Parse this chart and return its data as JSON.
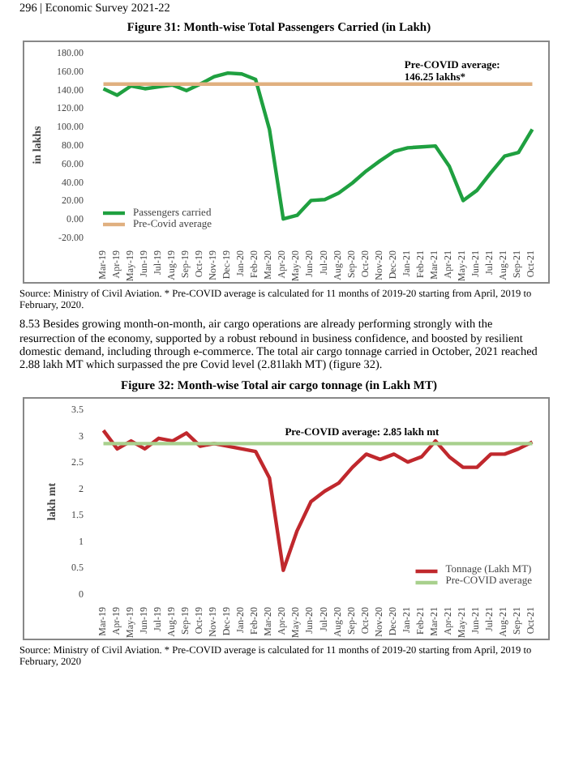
{
  "chart_data": [
    {
      "type": "line",
      "title": "Figure 31: Month-wise Total Passengers Carried (in Lakh)",
      "ylabel": "in lakhs",
      "categories": [
        "Mar-19",
        "Apr-19",
        "May-19",
        "Jun-19",
        "Jul-19",
        "Aug-19",
        "Sep-19",
        "Oct-19",
        "Nov-19",
        "Dec-19",
        "Jan-20",
        "Feb-20",
        "Mar-20",
        "Apr-20",
        "May-20",
        "Jun-20",
        "Jul-20",
        "Aug-20",
        "Sep-20",
        "Oct-20",
        "Nov-20",
        "Dec-20",
        "Jan-21",
        "Feb-21",
        "Mar-21",
        "Apr-21",
        "May-21",
        "Jun-21",
        "Jul-21",
        "Aug-21",
        "Sep-21",
        "Oct-21"
      ],
      "series": [
        {
          "name": "Passengers carried",
          "color": "#1fa040",
          "values": [
            141,
            134,
            144,
            141,
            143,
            145,
            139,
            146,
            154,
            158,
            157,
            151,
            97,
            0,
            4,
            20,
            21,
            28,
            39,
            52,
            63,
            73,
            77,
            78,
            79,
            57,
            20,
            31,
            50,
            68,
            72,
            97
          ]
        },
        {
          "name": "Pre-Covid average",
          "color": "#e0b080",
          "values": [
            146,
            146,
            146,
            146,
            146,
            146,
            146,
            146,
            146,
            146,
            146,
            146,
            146,
            146,
            146,
            146,
            146,
            146,
            146,
            146,
            146,
            146,
            146,
            146,
            146,
            146,
            146,
            146,
            146,
            146,
            146,
            146
          ]
        }
      ],
      "ylim": [
        -20,
        180
      ],
      "yticks": [
        {
          "value": -20,
          "label": "-20.00"
        },
        {
          "value": 0,
          "label": "0.00"
        },
        {
          "value": 20,
          "label": "20.00"
        },
        {
          "value": 40,
          "label": "40.00"
        },
        {
          "value": 60,
          "label": "60.00"
        },
        {
          "value": 80,
          "label": "80.00"
        },
        {
          "value": 100,
          "label": "100.00"
        },
        {
          "value": 120,
          "label": "120.00"
        },
        {
          "value": 140,
          "label": "140.00"
        },
        {
          "value": 160,
          "label": "160.00"
        },
        {
          "value": 180,
          "label": "180.00"
        }
      ],
      "grid": false,
      "legend": "bottom left",
      "annotations": [
        "296 | Economic Survey 2021-22",
        "Pre-COVID average:\n146.25 lakhs*",
        "Source: Ministry of Civil Aviation. * Pre-COVID average is calculated for 11 months of 2019-20 starting from April, 2019 to February, 2020."
      ]
    },
    {
      "type": "line",
      "title": "Figure 32: Month-wise Total air cargo tonnage (in Lakh MT)",
      "ylabel": "lakh mt",
      "categories": [
        "Mar-19",
        "Apr-19",
        "May-19",
        "Jun-19",
        "Jul-19",
        "Aug-19",
        "Sep-19",
        "Oct-19",
        "Nov-19",
        "Dec-19",
        "Jan-20",
        "Feb-20",
        "Mar-20",
        "Apr-20",
        "May-20",
        "Jun-20",
        "Jul-20",
        "Aug-20",
        "Sep-20",
        "Oct-20",
        "Nov-20",
        "Dec-20",
        "Jan-21",
        "Feb-21",
        "Mar-21",
        "Apr-21",
        "May-21",
        "Jun-21",
        "Jul-21",
        "Aug-21",
        "Sep-21",
        "Oct-21"
      ],
      "series": [
        {
          "name": "Tonnage (Lakh MT)",
          "color": "#c0282d",
          "values": [
            3.1,
            2.75,
            2.9,
            2.75,
            2.95,
            2.9,
            3.05,
            2.8,
            2.85,
            2.8,
            2.75,
            2.7,
            2.2,
            0.45,
            1.2,
            1.75,
            1.95,
            2.1,
            2.4,
            2.65,
            2.55,
            2.65,
            2.5,
            2.6,
            2.9,
            2.6,
            2.4,
            2.4,
            2.65,
            2.65,
            2.75,
            2.88
          ]
        },
        {
          "name": "Pre-COVID average",
          "color": "#a8d08d",
          "values": [
            2.85,
            2.85,
            2.85,
            2.85,
            2.85,
            2.85,
            2.85,
            2.85,
            2.85,
            2.85,
            2.85,
            2.85,
            2.85,
            2.85,
            2.85,
            2.85,
            2.85,
            2.85,
            2.85,
            2.85,
            2.85,
            2.85,
            2.85,
            2.85,
            2.85,
            2.85,
            2.85,
            2.85,
            2.85,
            2.85,
            2.85,
            2.85
          ]
        }
      ],
      "ylim": [
        0,
        3.5
      ],
      "yticks": [
        0,
        0.5,
        1,
        1.5,
        2,
        2.5,
        3,
        3.5
      ],
      "grid": false,
      "legend": "bottom right",
      "annotations": [
        "8.53 Besides growing month-on-month, air cargo operations are already performing strongly with the resurrection of the economy, supported by a robust rebound in business confidence, and boosted by resilient domestic demand, including through e-commerce. The total air cargo tonnage carried in October, 2021 reached 2.88 lakh MT which surpassed the pre Covid level (2.81lakh MT) (figure 32).",
        "Pre-COVID average: 2.85 lakh mt",
        "Source: Ministry of Civil Aviation. * Pre-COVID average is calculated for 11 months of 2019-20 starting from April, 2019 to February, 2020"
      ]
    }
  ]
}
